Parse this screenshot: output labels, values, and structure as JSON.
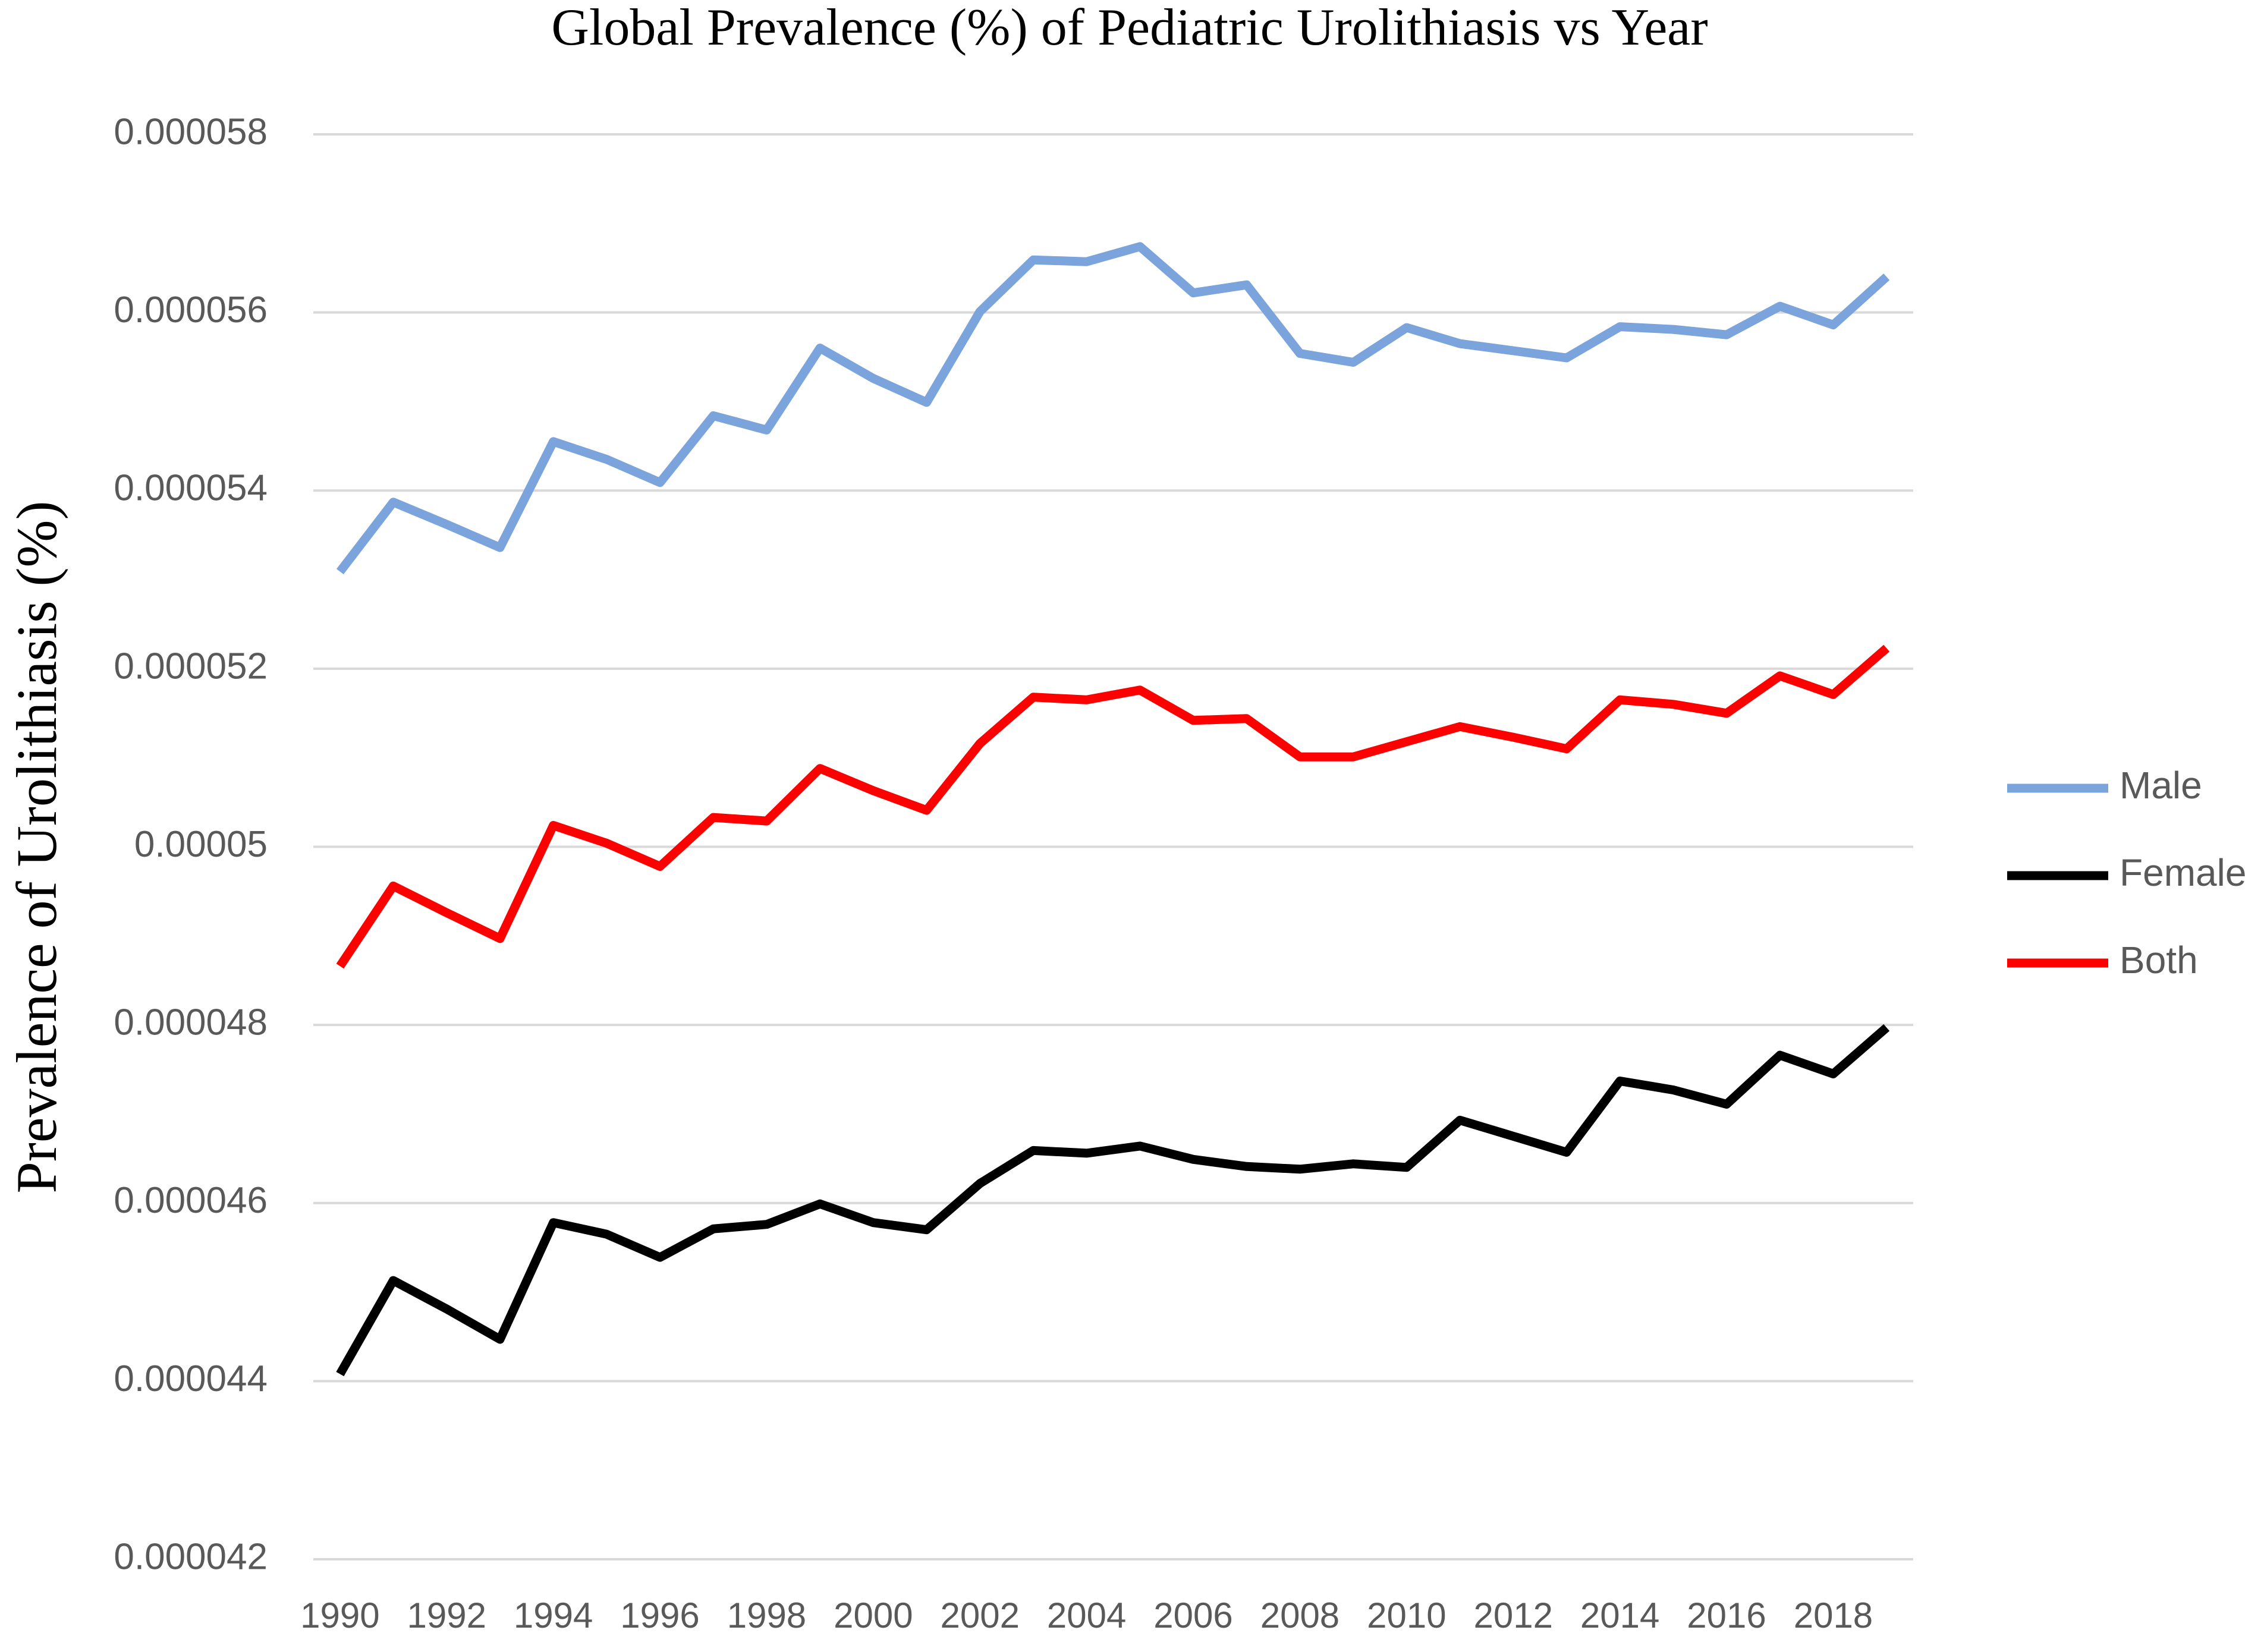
{
  "chart_data": {
    "type": "line",
    "title": "Global Prevalence (%) of Pediatric Urolithiasis vs Year",
    "y_label": "Prevalence of Urolithiasis (%)",
    "categories": [
      "1990",
      null,
      "1992",
      null,
      "1994",
      null,
      "1996",
      null,
      "1998",
      null,
      "2000",
      null,
      "2002",
      null,
      "2004",
      null,
      "2006",
      null,
      "2008",
      null,
      "2010",
      null,
      "2012",
      null,
      "2014",
      null,
      "2016",
      null,
      "2018",
      null
    ],
    "series": [
      {
        "name": "Male",
        "color": "#7ba3dc",
        "values": [
          5.309e-05,
          5.387e-05,
          5.362e-05,
          5.336e-05,
          5.455e-05,
          5.435e-05,
          5.409e-05,
          5.484e-05,
          5.468e-05,
          5.56e-05,
          5.526e-05,
          5.499e-05,
          5.601e-05,
          5.659e-05,
          5.657e-05,
          5.674e-05,
          5.622e-05,
          5.631e-05,
          5.554e-05,
          5.544e-05,
          5.583e-05,
          5.565e-05,
          5.557e-05,
          5.549e-05,
          5.584e-05,
          5.581e-05,
          5.575e-05,
          5.607e-05,
          5.586e-05,
          5.64e-05
        ]
      },
      {
        "name": "Female",
        "color": "#000000",
        "values": [
          4.408e-05,
          4.513e-05,
          4.481e-05,
          4.447e-05,
          4.578e-05,
          4.565e-05,
          4.539e-05,
          4.571e-05,
          4.576e-05,
          4.599e-05,
          4.578e-05,
          4.57e-05,
          4.622e-05,
          4.659e-05,
          4.656e-05,
          4.664e-05,
          4.649e-05,
          4.641e-05,
          4.638e-05,
          4.644e-05,
          4.64e-05,
          4.693e-05,
          4.675e-05,
          4.657e-05,
          4.737e-05,
          4.727e-05,
          4.711e-05,
          4.766e-05,
          4.745e-05,
          4.797e-05
        ]
      },
      {
        "name": "Both",
        "color": "#ff0000",
        "values": [
          4.866e-05,
          4.956e-05,
          4.926e-05,
          4.897e-05,
          5.024e-05,
          5.004e-05,
          4.978e-05,
          5.033e-05,
          5.029e-05,
          5.088e-05,
          5.063e-05,
          5.041e-05,
          5.116e-05,
          5.168e-05,
          5.165e-05,
          5.176e-05,
          5.142e-05,
          5.144e-05,
          5.101e-05,
          5.101e-05,
          5.118e-05,
          5.135e-05,
          5.123e-05,
          5.11e-05,
          5.165e-05,
          5.16e-05,
          5.15e-05,
          5.192e-05,
          5.171e-05,
          5.223e-05
        ]
      }
    ],
    "ylim": [
      4.2e-05,
      5.8e-05
    ],
    "yticks": [
      4.2e-05,
      4.4e-05,
      4.6e-05,
      4.8e-05,
      5e-05,
      5.2e-05,
      5.4e-05,
      5.6e-05,
      5.8e-05
    ],
    "grid": true,
    "legend": "right"
  }
}
